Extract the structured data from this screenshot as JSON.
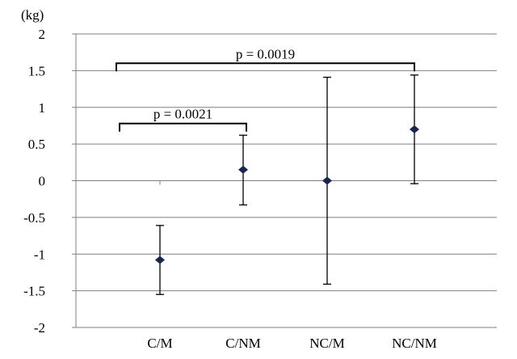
{
  "chart_data": {
    "type": "scatter",
    "title": "",
    "unit_label": "(kg)",
    "xlabel": "",
    "ylabel": "",
    "ylim": [
      -2,
      2
    ],
    "yticks": [
      2,
      1.5,
      1,
      0.5,
      0,
      -0.5,
      -1,
      -1.5,
      -2
    ],
    "ytick_labels": [
      "2",
      "1.5",
      "1",
      "0.5",
      "0",
      "-0.5",
      "-1",
      "-1.5",
      "-2"
    ],
    "grid": true,
    "categories": [
      "C/M",
      "C/NM",
      "NC/M",
      "NC/NM"
    ],
    "series": [
      {
        "values": [
          -1.08,
          0.15,
          0.0,
          0.7
        ],
        "upper": [
          -0.61,
          0.62,
          1.41,
          1.44
        ],
        "lower": [
          -1.55,
          -0.33,
          -1.41,
          -0.04
        ],
        "marker_color": "#1a2650"
      }
    ],
    "annotations": [
      {
        "label": "p = 0.0021",
        "from": "C/M",
        "to": "C/NM",
        "y": 0.78
      },
      {
        "label": "p = 0.0019",
        "from": "C/M",
        "to": "NC/NM",
        "y": 1.6
      }
    ]
  }
}
